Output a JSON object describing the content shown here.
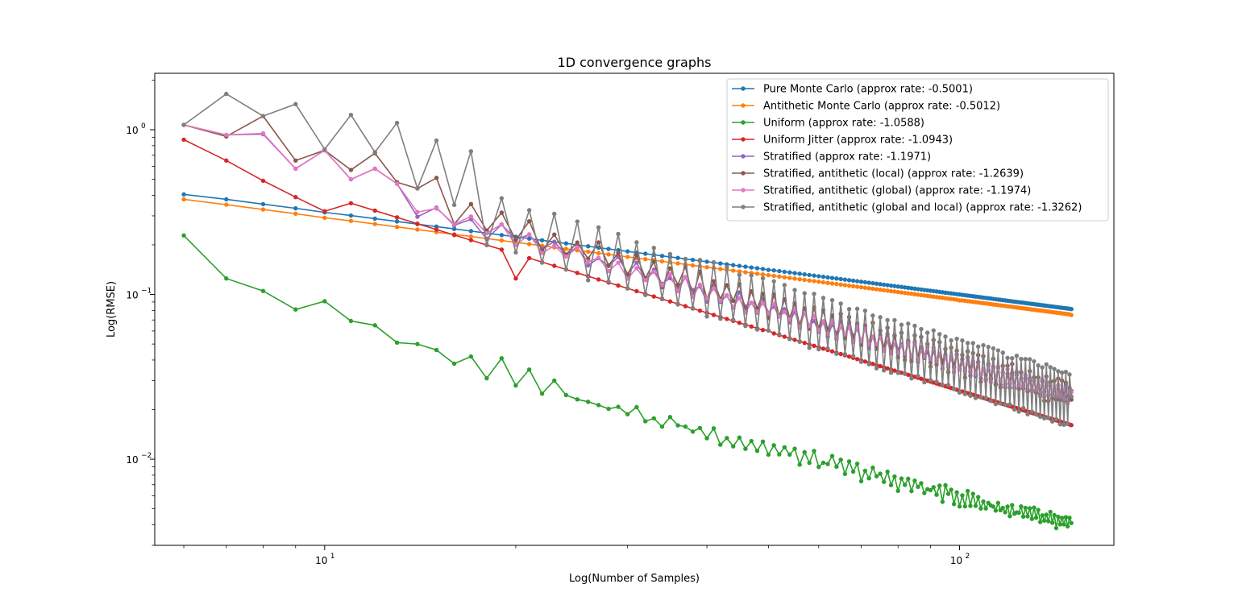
{
  "chart_data": {
    "type": "line",
    "title": "1D convergence graphs",
    "xlabel": "Log(Number of Samples)",
    "ylabel": "Log(RMSE)",
    "xscale": "log",
    "yscale": "log",
    "xlim": [
      5.4,
      175
    ],
    "ylim": [
      0.003,
      2.2
    ],
    "x_ticks": [
      {
        "value": 10,
        "label": "10",
        "sup": "1"
      },
      {
        "value": 100,
        "label": "10",
        "sup": "2"
      }
    ],
    "y_ticks": [
      {
        "value": 0.01,
        "label": "10",
        "sup": "−2"
      },
      {
        "value": 0.1,
        "label": "10",
        "sup": "−1"
      },
      {
        "value": 1,
        "label": "10",
        "sup": "0"
      }
    ],
    "grid": false,
    "legend_position": "top-right",
    "x_range": {
      "start": 6,
      "end": 150,
      "step": 1
    },
    "series": [
      {
        "name": "Pure Monte Carlo (approx rate: -0.5001)",
        "color": "#1f77b4",
        "model": {
          "kind": "power",
          "coef": 1.0,
          "rate": -0.5001
        },
        "values_sampled": [
          {
            "x": 6,
            "y": 0.405
          },
          {
            "x": 10,
            "y": 0.315
          },
          {
            "x": 20,
            "y": 0.224
          },
          {
            "x": 50,
            "y": 0.141
          },
          {
            "x": 100,
            "y": 0.1
          },
          {
            "x": 150,
            "y": 0.0815
          }
        ]
      },
      {
        "name": "Antithetic Monte Carlo (approx rate: -0.5012)",
        "color": "#ff7f0e",
        "model": {
          "kind": "power",
          "coef": 0.93,
          "rate": -0.5012
        },
        "values_sampled": [
          {
            "x": 6,
            "y": 0.378
          },
          {
            "x": 10,
            "y": 0.292
          },
          {
            "x": 20,
            "y": 0.207
          },
          {
            "x": 50,
            "y": 0.131
          },
          {
            "x": 100,
            "y": 0.092
          },
          {
            "x": 150,
            "y": 0.075
          }
        ]
      },
      {
        "name": "Uniform (approx rate: -1.0588)",
        "color": "#2ca02c",
        "model": {
          "kind": "power_oscillating",
          "coef": 0.55,
          "rate": -0.9853,
          "noise": 0.07,
          "odd_even": 0.06
        },
        "values_sampled": [
          {
            "x": 6,
            "y": 0.228
          },
          {
            "x": 7,
            "y": 0.125
          },
          {
            "x": 8,
            "y": 0.105
          },
          {
            "x": 9,
            "y": 0.081
          },
          {
            "x": 10,
            "y": 0.091
          },
          {
            "x": 11,
            "y": 0.069
          },
          {
            "x": 12,
            "y": 0.065
          },
          {
            "x": 13,
            "y": 0.051
          },
          {
            "x": 14,
            "y": 0.05
          },
          {
            "x": 15,
            "y": 0.046
          },
          {
            "x": 16,
            "y": 0.038
          },
          {
            "x": 17,
            "y": 0.042
          },
          {
            "x": 18,
            "y": 0.031
          },
          {
            "x": 19,
            "y": 0.041
          },
          {
            "x": 20,
            "y": 0.028
          },
          {
            "x": 21,
            "y": 0.035
          },
          {
            "x": 22,
            "y": 0.025
          },
          {
            "x": 23,
            "y": 0.03
          },
          {
            "x": 24,
            "y": 0.0245
          },
          {
            "x": 150,
            "y": 0.0041
          }
        ]
      },
      {
        "name": "Uniform Jitter (approx rate: -1.0943)",
        "color": "#d62728",
        "model": {
          "kind": "power",
          "coef": 6.16,
          "rate": -1.1866
        },
        "values_sampled": [
          {
            "x": 6,
            "y": 0.87
          },
          {
            "x": 7,
            "y": 0.65
          },
          {
            "x": 8,
            "y": 0.49
          },
          {
            "x": 9,
            "y": 0.39
          },
          {
            "x": 10,
            "y": 0.32
          },
          {
            "x": 20,
            "y": 0.125
          },
          {
            "x": 50,
            "y": 0.0605
          },
          {
            "x": 100,
            "y": 0.0257
          },
          {
            "x": 150,
            "y": 0.0161
          }
        ]
      },
      {
        "name": "Stratified (approx rate: -1.1971)",
        "color": "#9467bd",
        "model": {
          "kind": "power_oscillating",
          "coef": 6.0,
          "rate": -1.1,
          "noise": 0.06,
          "odd_even": 0.08
        },
        "values_sampled": [
          {
            "x": 6,
            "y": 1.07
          },
          {
            "x": 7,
            "y": 0.93
          },
          {
            "x": 8,
            "y": 0.94
          },
          {
            "x": 9,
            "y": 0.58
          },
          {
            "x": 10,
            "y": 0.75
          },
          {
            "x": 11,
            "y": 0.5
          },
          {
            "x": 12,
            "y": 0.58
          },
          {
            "x": 13,
            "y": 0.47
          },
          {
            "x": 150,
            "y": 0.026
          }
        ]
      },
      {
        "name": "Stratified, antithetic (local) (approx rate: -1.2639)",
        "color": "#8c564b",
        "model": {
          "kind": "power_oscillating",
          "coef": 7.5,
          "rate": -1.14,
          "noise": 0.06,
          "odd_even": 0.14
        },
        "values_sampled": [
          {
            "x": 6,
            "y": 1.07
          },
          {
            "x": 7,
            "y": 0.91
          },
          {
            "x": 8,
            "y": 1.21
          },
          {
            "x": 9,
            "y": 0.65
          },
          {
            "x": 10,
            "y": 0.75
          },
          {
            "x": 11,
            "y": 0.57
          },
          {
            "x": 12,
            "y": 0.72
          },
          {
            "x": 13,
            "y": 0.48
          },
          {
            "x": 14,
            "y": 0.44
          },
          {
            "x": 15,
            "y": 0.51
          },
          {
            "x": 150,
            "y": 0.023
          }
        ]
      },
      {
        "name": "Stratified, antithetic (global) (approx rate: -1.1974)",
        "color": "#e377c2",
        "model": {
          "kind": "power_oscillating",
          "coef": 6.1,
          "rate": -1.105,
          "noise": 0.05,
          "odd_even": 0.08
        },
        "values_sampled": [
          {
            "x": 6,
            "y": 1.07
          },
          {
            "x": 7,
            "y": 0.93
          },
          {
            "x": 8,
            "y": 0.95
          },
          {
            "x": 9,
            "y": 0.58
          },
          {
            "x": 10,
            "y": 0.75
          },
          {
            "x": 11,
            "y": 0.5
          },
          {
            "x": 12,
            "y": 0.58
          },
          {
            "x": 13,
            "y": 0.47
          },
          {
            "x": 150,
            "y": 0.0255
          }
        ]
      },
      {
        "name": "Stratified, antithetic (global and local) (approx rate: -1.3262)",
        "color": "#7f7f7f",
        "model": {
          "kind": "power_oscillating",
          "coef": 9.0,
          "rate": -1.18,
          "noise": 0.04,
          "odd_even": 0.34
        },
        "values_sampled": [
          {
            "x": 6,
            "y": 1.07
          },
          {
            "x": 7,
            "y": 1.65
          },
          {
            "x": 8,
            "y": 1.21
          },
          {
            "x": 9,
            "y": 1.43
          },
          {
            "x": 10,
            "y": 0.76
          },
          {
            "x": 11,
            "y": 1.23
          },
          {
            "x": 12,
            "y": 0.73
          },
          {
            "x": 13,
            "y": 1.1
          },
          {
            "x": 14,
            "y": 0.44
          },
          {
            "x": 15,
            "y": 0.86
          },
          {
            "x": 16,
            "y": 0.35
          },
          {
            "x": 17,
            "y": 0.74
          },
          {
            "x": 150,
            "y": 0.024
          }
        ]
      }
    ]
  }
}
